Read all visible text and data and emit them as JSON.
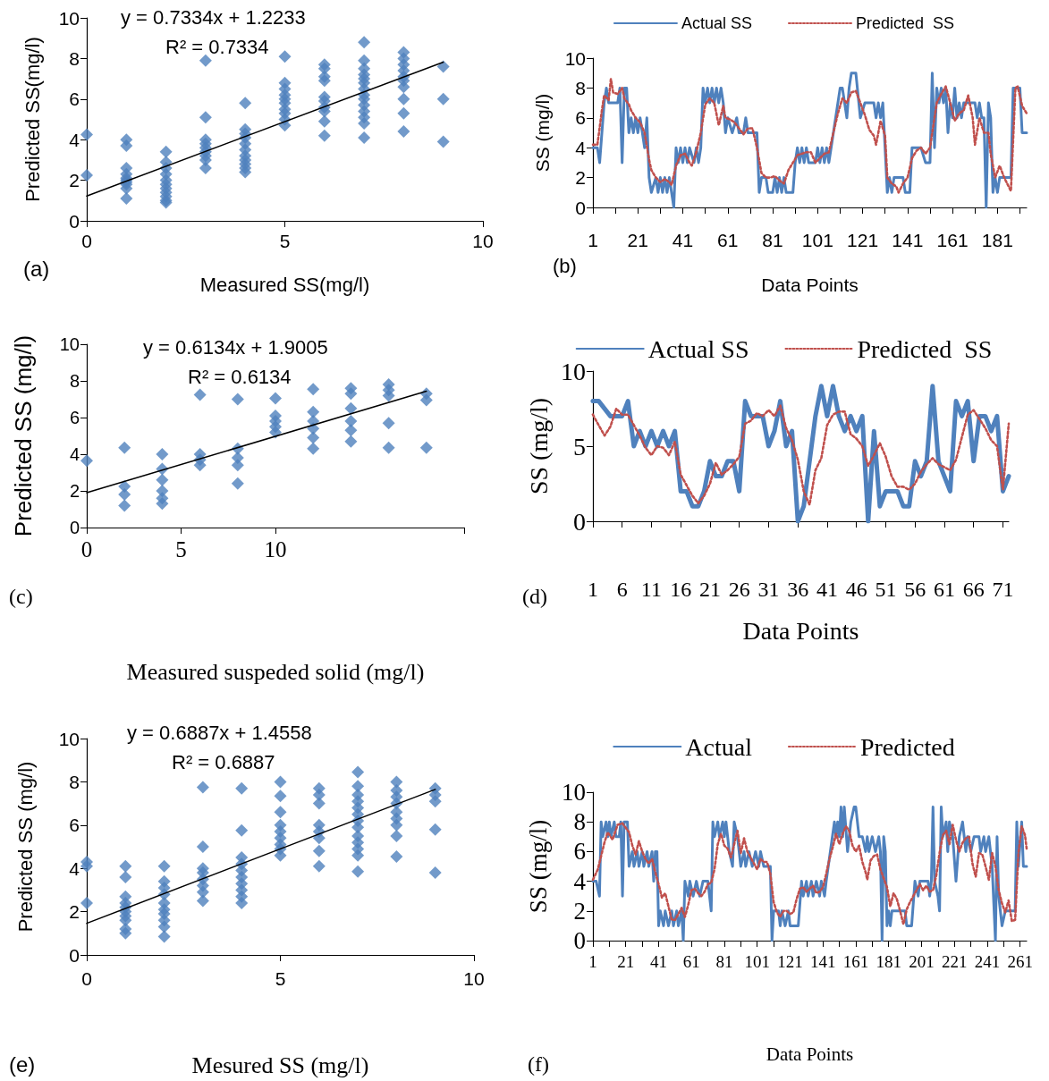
{
  "chart_data": [
    {
      "type": "scatter",
      "xlabel": "Measured SS(mg/l)",
      "ylabel": "Predicted SS(mg/l)",
      "annotations": [
        "y = 0.7334x + 1.2233",
        "R² = 0.7334",
        "(a)"
      ],
      "xlim": [
        0,
        10
      ],
      "xticks": [
        0,
        5,
        10
      ],
      "ylim": [
        0,
        10
      ],
      "yticks": [
        0,
        2,
        4,
        6,
        8,
        10
      ],
      "marker": "diamond",
      "series": [
        {
          "color": "#4f81bd",
          "x": [
            0,
            0,
            1,
            1,
            1,
            1,
            1,
            1,
            1,
            1,
            1,
            1,
            2,
            2,
            2,
            2,
            2,
            2,
            2,
            2,
            2,
            2,
            2,
            3,
            3,
            3,
            3,
            3,
            3,
            3,
            3,
            3,
            4,
            4,
            4,
            4,
            4,
            4,
            4,
            4,
            4,
            4,
            4,
            5,
            5,
            5,
            5,
            5,
            5,
            5,
            5,
            5,
            5,
            6,
            6,
            6,
            6,
            6,
            6,
            6,
            6,
            6,
            6,
            7,
            7,
            7,
            7,
            7,
            7,
            7,
            7,
            7,
            7,
            7,
            7,
            7,
            7,
            8,
            8,
            8,
            8,
            8,
            8,
            8,
            8,
            8,
            8,
            9,
            9,
            9
          ],
          "values": [
            4.25,
            2.25,
            4.0,
            3.7,
            2.6,
            2.3,
            2.1,
            2.0,
            1.9,
            1.8,
            1.6,
            1.1,
            3.4,
            2.9,
            2.6,
            2.3,
            2.0,
            1.8,
            1.6,
            1.4,
            1.2,
            1.0,
            0.9,
            7.9,
            5.1,
            4.0,
            3.8,
            3.6,
            3.4,
            3.2,
            3.0,
            2.6,
            5.8,
            4.5,
            4.3,
            4.1,
            3.8,
            3.5,
            3.2,
            3.0,
            2.8,
            2.6,
            2.4,
            8.1,
            6.8,
            6.5,
            6.2,
            6.0,
            5.8,
            5.5,
            5.3,
            5.0,
            4.7,
            7.7,
            7.5,
            7.1,
            6.9,
            6.1,
            5.9,
            5.6,
            5.4,
            4.9,
            4.2,
            8.8,
            7.9,
            7.5,
            7.2,
            7.0,
            6.8,
            6.5,
            6.2,
            6.0,
            5.7,
            5.4,
            5.1,
            4.8,
            4.1,
            8.3,
            8.0,
            7.7,
            7.4,
            7.1,
            6.9,
            6.6,
            6.0,
            5.3,
            4.4,
            7.6,
            6.0,
            3.9
          ]
        },
        {
          "type": "line",
          "marker": "none",
          "color": "#000000",
          "x": [
            0,
            9
          ],
          "values": [
            1.22,
            7.82
          ]
        }
      ]
    },
    {
      "type": "line",
      "xlabel": "Data Points",
      "ylabel": "SS (mg/l)",
      "annotations": [
        "(b)"
      ],
      "legend": "top",
      "marker": "none",
      "xlim": [
        1,
        194
      ],
      "xticks": [
        1,
        {
          "value": 11,
          "label": null
        },
        21,
        {
          "value": 31,
          "label": null
        },
        41,
        {
          "value": 51,
          "label": null
        },
        61,
        {
          "value": 71,
          "label": null
        },
        81,
        {
          "value": 91,
          "label": null
        },
        101,
        {
          "value": 111,
          "label": null
        },
        121,
        {
          "value": 131,
          "label": null
        },
        141,
        {
          "value": 151,
          "label": null
        },
        161,
        {
          "value": 171,
          "label": null
        },
        181,
        {
          "value": 191,
          "label": null
        }
      ],
      "ylim": [
        0,
        10
      ],
      "yticks": [
        0,
        2,
        4,
        6,
        8,
        10
      ],
      "series": [
        {
          "name": "Actual SS",
          "color": "#4f81bd",
          "line_style": "solid",
          "x": [
            1,
            3,
            4,
            6,
            7,
            8,
            12,
            13,
            14,
            15,
            16,
            17,
            18,
            19,
            20,
            21,
            22,
            23,
            24,
            25,
            26,
            27,
            29,
            30,
            31,
            32,
            33,
            34,
            35,
            36,
            37,
            38,
            39,
            40,
            41,
            42,
            43,
            44,
            46,
            47,
            48,
            49,
            50,
            51,
            52,
            53,
            54,
            55,
            56,
            57,
            58,
            59,
            60,
            61,
            63,
            65,
            66,
            68,
            69,
            70,
            74,
            75,
            76,
            78,
            79,
            81,
            82,
            83,
            84,
            85,
            86,
            87,
            90,
            91,
            92,
            93,
            94,
            95,
            96,
            97,
            100,
            101,
            102,
            103,
            104,
            105,
            106,
            107,
            111,
            112,
            114,
            115,
            116,
            118,
            120,
            122,
            126,
            127,
            128,
            129,
            130,
            132,
            133,
            134,
            135,
            139,
            140,
            142,
            143,
            147,
            149,
            151,
            152,
            153,
            154,
            155,
            156,
            157,
            158,
            159,
            160,
            161,
            162,
            163,
            164,
            165,
            166,
            171,
            172,
            173,
            174,
            175,
            176,
            177,
            178,
            179,
            180,
            181,
            182,
            187,
            188,
            191,
            192,
            194
          ],
          "values": [
            4,
            4,
            3,
            7,
            8,
            7,
            7,
            8,
            3,
            8,
            8,
            5,
            6,
            5,
            6,
            5,
            6,
            5,
            4,
            6,
            2,
            1,
            2,
            1,
            2,
            1,
            2,
            1,
            2,
            1,
            0,
            4,
            3,
            4,
            3,
            4,
            3,
            4,
            3,
            4,
            3,
            4,
            8,
            7,
            8,
            7,
            8,
            7,
            8,
            7,
            8,
            7,
            5,
            6,
            5,
            6,
            5,
            5,
            6,
            5,
            5,
            1,
            2,
            2,
            1,
            1,
            2,
            1,
            2,
            1,
            2,
            1,
            1,
            3,
            4,
            3,
            4,
            3,
            4,
            3,
            3,
            4,
            3,
            4,
            3,
            4,
            3,
            4,
            8,
            8,
            6,
            8,
            9,
            9,
            6,
            7,
            7,
            6,
            7,
            6,
            7,
            1,
            2,
            1,
            2,
            2,
            1,
            1,
            4,
            4,
            3,
            3,
            9,
            4,
            8,
            7,
            8,
            7,
            8,
            5,
            7,
            6,
            8,
            6,
            7,
            6,
            7,
            7,
            6,
            7,
            6,
            6,
            0,
            7,
            6,
            1,
            2,
            1,
            2,
            2,
            8,
            8,
            5,
            5
          ]
        },
        {
          "name": "Predicted  SS",
          "color": "#c0504d",
          "line_style": "dotted",
          "x": [
            1,
            3,
            5,
            6,
            8,
            9,
            10,
            12,
            14,
            15,
            17,
            18,
            20,
            22,
            24,
            26,
            27,
            29,
            31,
            33,
            35,
            36,
            38,
            40,
            42,
            44,
            45,
            47,
            49,
            51,
            53,
            55,
            57,
            59,
            60,
            62,
            64,
            66,
            68,
            70,
            72,
            74,
            76,
            78,
            80,
            82,
            84,
            86,
            88,
            90,
            92,
            94,
            96,
            98,
            100,
            102,
            104,
            106,
            108,
            110,
            112,
            114,
            116,
            118,
            120,
            122,
            124,
            126,
            127,
            129,
            131,
            132,
            134,
            136,
            137,
            139,
            141,
            143,
            145,
            147,
            149,
            151,
            152,
            154,
            156,
            158,
            160,
            162,
            164,
            166,
            168,
            170,
            171,
            173,
            175,
            177,
            178,
            180,
            182,
            184,
            186,
            187,
            189,
            190,
            192,
            194
          ],
          "values": [
            4.2,
            4.2,
            6.5,
            7.5,
            7.2,
            8.6,
            7.7,
            7.6,
            8.0,
            7.3,
            6.9,
            6.5,
            6.0,
            5.7,
            5.0,
            3.2,
            2.5,
            2.0,
            1.7,
            1.9,
            1.7,
            1.5,
            2.8,
            3.5,
            3.6,
            3.0,
            2.8,
            3.7,
            5.0,
            6.9,
            7.3,
            7.0,
            5.5,
            6.8,
            6.0,
            5.9,
            5.7,
            5.3,
            4.9,
            5.3,
            5.3,
            4.0,
            2.3,
            2.0,
            2.0,
            2.1,
            1.8,
            1.6,
            2.5,
            3.0,
            3.5,
            3.6,
            3.7,
            3.7,
            3.0,
            3.3,
            3.6,
            3.7,
            5.0,
            6.3,
            7.3,
            7.0,
            7.7,
            7.8,
            7.0,
            6.2,
            5.2,
            4.8,
            4.2,
            5.8,
            4.8,
            2.0,
            1.6,
            1.4,
            1.0,
            1.6,
            2.0,
            3.3,
            3.8,
            4.0,
            3.6,
            4.0,
            5.0,
            7.0,
            7.6,
            8.1,
            7.0,
            5.8,
            6.3,
            6.5,
            7.5,
            6.0,
            4.2,
            6.0,
            5.0,
            5.0,
            3.6,
            2.0,
            2.8,
            2.0,
            1.4,
            1.1,
            8.0,
            8.1,
            6.8,
            6.3
          ]
        }
      ]
    },
    {
      "type": "scatter",
      "xlabel": "Measured suspeded solid (mg/l)",
      "ylabel": "Predicted SS (mg/l)",
      "annotations": [
        "y = 0.6134x + 1.9005",
        "R² = 0.6134",
        "(c)"
      ],
      "xlim": [
        0,
        20
      ],
      "xticks": [
        0,
        5,
        10,
        {
          "value": 20,
          "label": null
        }
      ],
      "ylim": [
        0,
        10
      ],
      "yticks": [
        0,
        2,
        4,
        6,
        8,
        10
      ],
      "marker": "diamond",
      "series": [
        {
          "color": "#4f81bd",
          "x": [
            0,
            2,
            2,
            2,
            2,
            4,
            4,
            4,
            4,
            4,
            4,
            6,
            6,
            6,
            6,
            8,
            8,
            8,
            8,
            8,
            10,
            10,
            10,
            10,
            10,
            12,
            12,
            12,
            12,
            12,
            12,
            14,
            14,
            14,
            14,
            14,
            14,
            16,
            16,
            16,
            16,
            16,
            18,
            18,
            18
          ],
          "values": [
            3.65,
            4.35,
            2.25,
            1.8,
            1.2,
            4.0,
            3.2,
            2.6,
            2.0,
            1.6,
            1.3,
            7.25,
            4.0,
            3.7,
            3.4,
            7.0,
            4.3,
            3.8,
            3.4,
            2.4,
            7.05,
            6.1,
            5.8,
            5.5,
            5.2,
            7.55,
            6.3,
            5.8,
            5.4,
            4.9,
            4.3,
            7.6,
            7.3,
            6.5,
            5.8,
            5.3,
            4.7,
            7.8,
            7.5,
            7.2,
            5.7,
            4.35,
            7.3,
            6.95,
            4.35
          ]
        },
        {
          "type": "line",
          "marker": "none",
          "color": "#000000",
          "x": [
            0,
            18
          ],
          "values": [
            1.9,
            7.44
          ]
        }
      ]
    },
    {
      "type": "line",
      "xlabel": "Data Points",
      "ylabel": "SS (mg/l)",
      "annotations": [
        "(d)"
      ],
      "legend": "top",
      "marker": "none",
      "xlim": [
        1,
        72
      ],
      "xticks": [
        1,
        6,
        11,
        16,
        21,
        26,
        31,
        36,
        41,
        46,
        51,
        56,
        61,
        66,
        71
      ],
      "ylim": [
        0,
        10
      ],
      "yticks": [
        0,
        5,
        10
      ],
      "series": [
        {
          "name": "Actual SS",
          "color": "#4f81bd",
          "line_style": "solid",
          "x": [
            1,
            2,
            4,
            6,
            7,
            8,
            9,
            10,
            11,
            12,
            13,
            14,
            15,
            16,
            17,
            18,
            19,
            20,
            21,
            22,
            23,
            24,
            25,
            26,
            27,
            28,
            30,
            31,
            32,
            33,
            34,
            35,
            36,
            37,
            38,
            39,
            40,
            41,
            42,
            43,
            44,
            45,
            46,
            47,
            48,
            49,
            50,
            51,
            53,
            54,
            55,
            56,
            57,
            58,
            59,
            60,
            62,
            63,
            64,
            65,
            66,
            67,
            68,
            69,
            70,
            71,
            72
          ],
          "values": [
            8,
            8,
            7,
            7,
            8,
            5,
            6,
            5,
            6,
            5,
            6,
            5,
            6,
            2,
            2,
            1,
            1,
            2,
            4,
            3,
            3,
            4,
            4,
            2,
            8,
            7,
            7,
            5,
            6,
            8,
            5,
            6,
            0,
            1,
            4,
            7,
            9,
            7,
            9,
            7,
            6,
            7,
            6,
            7,
            0,
            6,
            1,
            2,
            2,
            1,
            1,
            4,
            3,
            4,
            9,
            4,
            2,
            8,
            7,
            8,
            4,
            7,
            7,
            6,
            7,
            2,
            3
          ]
        },
        {
          "name": "Predicted  SS",
          "color": "#c0504d",
          "line_style": "dotted",
          "x": [
            1,
            2,
            3,
            4,
            5,
            6,
            7,
            8,
            9,
            10,
            11,
            12,
            13,
            14,
            15,
            16,
            17,
            18,
            19,
            20,
            21,
            22,
            23,
            24,
            25,
            26,
            27,
            28,
            29,
            30,
            31,
            32,
            33,
            34,
            35,
            36,
            37,
            38,
            39,
            40,
            41,
            42,
            43,
            44,
            45,
            46,
            47,
            48,
            49,
            50,
            51,
            52,
            53,
            54,
            55,
            56,
            57,
            58,
            59,
            60,
            61,
            62,
            63,
            64,
            65,
            66,
            67,
            68,
            69,
            70,
            71,
            72
          ],
          "values": [
            7.1,
            6.4,
            5.7,
            6.3,
            7.5,
            7.1,
            7.1,
            6.4,
            5.7,
            4.9,
            4.4,
            5.0,
            4.9,
            4.4,
            5.3,
            3.1,
            2.4,
            1.7,
            1.2,
            1.7,
            2.5,
            3.9,
            3.1,
            3.4,
            3.8,
            4.3,
            6.5,
            6.7,
            7.2,
            7.0,
            7.4,
            7.0,
            7.7,
            6.2,
            5.4,
            4.1,
            2.0,
            1.1,
            3.4,
            4.2,
            6.4,
            7.1,
            7.3,
            7.3,
            5.8,
            5.5,
            5.0,
            3.7,
            4.4,
            5.2,
            4.3,
            3.0,
            2.3,
            2.3,
            2.1,
            2.5,
            3.3,
            3.8,
            4.2,
            3.8,
            3.6,
            3.4,
            4.1,
            5.6,
            7.1,
            7.4,
            6.8,
            6.2,
            5.4,
            5.0,
            2.1,
            6.5
          ]
        }
      ]
    },
    {
      "type": "scatter",
      "xlabel": "Mesured SS (mg/l)",
      "ylabel": "Predicted SS (mg/l)",
      "annotations": [
        "y = 0.6887x + 1.4558",
        "R² = 0.6887",
        "(e)"
      ],
      "xlim": [
        0,
        10
      ],
      "xticks": [
        0,
        5,
        10
      ],
      "ylim": [
        0,
        10
      ],
      "yticks": [
        0,
        2,
        4,
        6,
        8,
        10
      ],
      "marker": "diamond",
      "series": [
        {
          "color": "#4f81bd",
          "x": [
            0,
            0,
            0,
            1,
            1,
            1,
            1,
            1,
            1,
            1,
            1,
            1,
            1,
            2,
            2,
            2,
            2,
            2,
            2,
            2,
            2,
            2,
            2,
            3,
            3,
            3,
            3,
            3,
            3,
            3,
            3,
            4,
            4,
            4,
            4,
            4,
            4,
            4,
            4,
            4,
            4,
            5,
            5,
            5,
            5,
            5,
            5,
            5,
            5,
            5,
            6,
            6,
            6,
            6,
            6,
            6,
            6,
            6,
            7,
            7,
            7,
            7,
            7,
            7,
            7,
            7,
            7,
            7,
            7,
            7,
            7,
            8,
            8,
            8,
            8,
            8,
            8,
            8,
            8,
            8,
            9,
            9,
            9,
            9,
            9
          ],
          "values": [
            4.3,
            4.1,
            2.4,
            4.1,
            3.6,
            2.7,
            2.4,
            2.2,
            2.0,
            1.8,
            1.6,
            1.2,
            1.0,
            4.1,
            3.4,
            3.1,
            2.8,
            2.4,
            2.1,
            1.9,
            1.6,
            1.3,
            0.85,
            7.75,
            5.0,
            4.0,
            3.8,
            3.5,
            3.2,
            2.9,
            2.5,
            7.7,
            5.75,
            4.5,
            4.2,
            3.9,
            3.6,
            3.3,
            3.0,
            2.7,
            2.4,
            8.0,
            7.35,
            6.6,
            6.0,
            5.7,
            5.4,
            5.1,
            4.9,
            4.6,
            7.7,
            7.4,
            7.0,
            6.0,
            5.7,
            5.4,
            4.8,
            4.1,
            8.45,
            7.8,
            7.4,
            7.1,
            6.8,
            6.5,
            6.2,
            5.9,
            5.5,
            5.2,
            4.9,
            4.6,
            3.85,
            8.0,
            7.6,
            7.3,
            7.0,
            6.6,
            6.3,
            6.0,
            5.5,
            4.55,
            7.7,
            7.4,
            7.1,
            5.8,
            3.8
          ]
        },
        {
          "type": "line",
          "marker": "none",
          "color": "#000000",
          "x": [
            0,
            9
          ],
          "values": [
            1.46,
            7.65
          ]
        }
      ]
    },
    {
      "type": "line",
      "xlabel": "Data Points",
      "ylabel": "SS (mg/l)",
      "annotations": [
        "(f)"
      ],
      "legend": "top",
      "marker": "none",
      "xlim": [
        1,
        265
      ],
      "xticks": [
        1,
        {
          "value": 11,
          "label": null
        },
        21,
        {
          "value": 31,
          "label": null
        },
        41,
        {
          "value": 51,
          "label": null
        },
        61,
        {
          "value": 71,
          "label": null
        },
        81,
        {
          "value": 91,
          "label": null
        },
        101,
        {
          "value": 111,
          "label": null
        },
        121,
        {
          "value": 131,
          "label": null
        },
        141,
        {
          "value": 151,
          "label": null
        },
        161,
        {
          "value": 171,
          "label": null
        },
        181,
        {
          "value": 191,
          "label": null
        },
        201,
        {
          "value": 211,
          "label": null
        },
        221,
        {
          "value": 231,
          "label": null
        },
        241,
        {
          "value": 251,
          "label": null
        },
        261
      ],
      "ylim": [
        0,
        10
      ],
      "yticks": [
        0,
        2,
        4,
        6,
        8,
        10
      ],
      "series": [
        {
          "name": "Actual",
          "color": "#4f81bd",
          "line_style": "solid",
          "x": [
            1,
            3,
            5,
            6,
            7,
            9,
            10,
            11,
            12,
            14,
            15,
            17,
            18,
            19,
            20,
            22,
            23,
            25,
            26,
            28,
            29,
            31,
            32,
            34,
            35,
            37,
            38,
            39,
            40,
            41,
            42,
            44,
            45,
            47,
            49,
            50,
            52,
            53,
            55,
            56,
            57,
            59,
            60,
            62,
            64,
            66,
            68,
            71,
            73,
            74,
            75,
            77,
            78,
            80,
            81,
            82,
            84,
            86,
            87,
            89,
            91,
            93,
            94,
            96,
            98,
            100,
            102,
            103,
            105,
            109,
            110,
            111,
            114,
            115,
            116,
            118,
            120,
            121,
            126,
            128,
            129,
            131,
            132,
            134,
            135,
            137,
            139,
            140,
            142,
            143,
            148,
            149,
            150,
            151,
            152,
            153,
            154,
            156,
            158,
            160,
            161,
            163,
            165,
            167,
            168,
            169,
            171,
            173,
            175,
            176,
            177,
            178,
            179,
            180,
            181,
            182,
            183,
            191,
            192,
            195,
            197,
            199,
            200,
            205,
            206,
            207,
            208,
            209,
            211,
            212,
            213,
            214,
            216,
            217,
            218,
            220,
            222,
            224,
            226,
            228,
            229,
            231,
            233,
            236,
            237,
            239,
            240,
            242,
            244,
            246,
            247,
            248,
            250,
            252,
            258,
            259,
            260,
            262,
            263,
            265
          ],
          "values": [
            4,
            4,
            3,
            8,
            7,
            8,
            7,
            8,
            7,
            8,
            7,
            7,
            8,
            3,
            8,
            8,
            5,
            6,
            5,
            6,
            5,
            6,
            5,
            6,
            5,
            6,
            4,
            6,
            6,
            1,
            2,
            1,
            2,
            1,
            2,
            1,
            2,
            1,
            2,
            0,
            4,
            3,
            4,
            3,
            4,
            3,
            4,
            4,
            2,
            8,
            7,
            8,
            7,
            8,
            7,
            8,
            6,
            5,
            8,
            7,
            5,
            6,
            5,
            6,
            5,
            6,
            5,
            6,
            5,
            5,
            0,
            2,
            2,
            1,
            2,
            1,
            2,
            1,
            1,
            4,
            3,
            4,
            3,
            4,
            3,
            4,
            3,
            4,
            3,
            4,
            8,
            7,
            8,
            7,
            9,
            7,
            9,
            6,
            8,
            9,
            9,
            7,
            7,
            6,
            7,
            6,
            7,
            6,
            7,
            6,
            0,
            7,
            6,
            1,
            2,
            1,
            2,
            2,
            1,
            1,
            4,
            3,
            4,
            4,
            3,
            4,
            9,
            4,
            3,
            2,
            9,
            7,
            8,
            6,
            8,
            7,
            4,
            7,
            8,
            6,
            7,
            6,
            7,
            7,
            6,
            7,
            6,
            7,
            5,
            0,
            7,
            3,
            1,
            2,
            2,
            8,
            5,
            8,
            5,
            5
          ]
        },
        {
          "name": "Predicted",
          "color": "#c0504d",
          "line_style": "dotted",
          "x": [
            1,
            4,
            6,
            8,
            10,
            13,
            16,
            19,
            21,
            23,
            25,
            27,
            29,
            31,
            33,
            35,
            37,
            39,
            41,
            43,
            45,
            47,
            49,
            51,
            53,
            55,
            57,
            59,
            61,
            63,
            65,
            67,
            69,
            71,
            73,
            75,
            77,
            79,
            81,
            83,
            85,
            87,
            89,
            91,
            93,
            95,
            97,
            99,
            101,
            103,
            105,
            107,
            109,
            111,
            113,
            115,
            117,
            119,
            121,
            123,
            125,
            127,
            129,
            131,
            133,
            135,
            137,
            139,
            141,
            143,
            145,
            147,
            149,
            151,
            153,
            155,
            157,
            159,
            161,
            163,
            165,
            167,
            168,
            170,
            172,
            174,
            176,
            178,
            180,
            182,
            184,
            186,
            188,
            190,
            192,
            194,
            196,
            198,
            200,
            202,
            204,
            206,
            208,
            210,
            212,
            214,
            216,
            218,
            220,
            222,
            224,
            226,
            228,
            230,
            232,
            234,
            236,
            238,
            240,
            242,
            244,
            246,
            248,
            250,
            252,
            254,
            256,
            258,
            260,
            262,
            264,
            265
          ],
          "values": [
            4.1,
            4.8,
            5.7,
            6.6,
            7.3,
            6.8,
            7.8,
            7.9,
            7.6,
            7.3,
            6.4,
            5.8,
            6.7,
            6.0,
            5.5,
            5.2,
            5.5,
            4.6,
            3.8,
            2.9,
            3.2,
            2.3,
            1.4,
            1.4,
            1.8,
            2.2,
            1.6,
            2.4,
            3.4,
            3.5,
            3.2,
            3.0,
            3.3,
            3.8,
            3.9,
            4.8,
            6.5,
            7.2,
            6.4,
            6.2,
            5.6,
            6.5,
            7.4,
            5.9,
            6.9,
            6.0,
            5.6,
            5.2,
            4.8,
            5.5,
            5.3,
            5.3,
            4.5,
            2.6,
            1.9,
            1.6,
            2.0,
            2.0,
            1.8,
            1.9,
            2.8,
            3.5,
            3.6,
            3.3,
            3.5,
            3.7,
            3.2,
            3.3,
            3.6,
            4.5,
            5.5,
            6.3,
            7.2,
            6.5,
            7.2,
            7.7,
            7.4,
            6.4,
            6.0,
            6.4,
            5.3,
            4.6,
            4.1,
            5.4,
            5.7,
            5.8,
            4.8,
            4.2,
            3.6,
            2.3,
            3.2,
            2.8,
            2.0,
            1.1,
            2.1,
            2.6,
            3.0,
            3.4,
            3.8,
            3.4,
            3.7,
            3.3,
            3.4,
            4.4,
            5.9,
            7.1,
            7.4,
            6.5,
            7.8,
            6.8,
            6.0,
            6.6,
            6.9,
            7.0,
            5.2,
            4.3,
            5.9,
            5.8,
            5.0,
            4.1,
            5.9,
            5.0,
            3.4,
            2.5,
            1.9,
            2.7,
            1.3,
            1.4,
            5.9,
            7.7,
            7.1,
            6.2
          ]
        }
      ]
    }
  ]
}
